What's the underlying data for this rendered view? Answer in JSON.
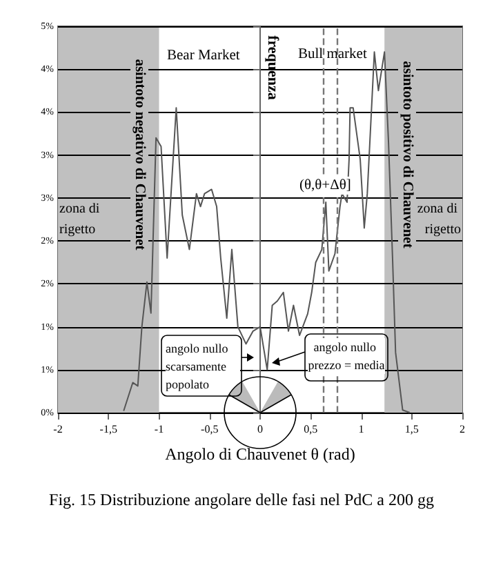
{
  "chart_data": {
    "type": "line",
    "title": "Fig. 15 Distribuzione angolare delle fasi nel PdC a 200 gg",
    "xlabel": "Angolo di Chauvenet θ (rad)",
    "ylabel": "frequenza",
    "annotations": [
      "Bear Market",
      "Bull market",
      "asintoto negativo di Chauvenet",
      "asintoto positivo di Chauvenet",
      "(θ,θ+Δθ]",
      "angolo nullo scarsamente popolato",
      "angolo nullo prezzo = media"
    ],
    "x": [
      -1.35,
      -1.26,
      -1.21,
      -1.17,
      -1.12,
      -1.08,
      -1.03,
      -0.98,
      -0.92,
      -0.83,
      -0.77,
      -0.7,
      -0.63,
      -0.59,
      -0.55,
      -0.48,
      -0.43,
      -0.39,
      -0.33,
      -0.28,
      -0.22,
      -0.14,
      -0.07,
      0,
      0.07,
      0.12,
      0.17,
      0.23,
      0.28,
      0.33,
      0.39,
      0.47,
      0.51,
      0.55,
      0.61,
      0.65,
      0.68,
      0.74,
      0.79,
      0.81,
      0.86,
      0.88,
      0.89,
      0.92,
      0.99,
      1.03,
      1.06,
      1.13,
      1.17,
      1.23,
      1.27,
      1.31,
      1.34,
      1.41,
      1.48
    ],
    "values": [
      0.02,
      0.35,
      0.31,
      1.0,
      1.52,
      1.16,
      3.2,
      3.1,
      1.8,
      3.55,
      2.3,
      1.9,
      2.55,
      2.4,
      2.55,
      2.6,
      2.4,
      1.8,
      1.1,
      1.9,
      1.0,
      0.8,
      0.95,
      1.0,
      0.5,
      1.25,
      1.3,
      1.4,
      0.95,
      1.25,
      0.9,
      1.15,
      1.4,
      1.75,
      1.9,
      2.45,
      1.65,
      1.85,
      2.4,
      2.55,
      2.45,
      2.95,
      3.55,
      3.55,
      2.95,
      2.15,
      2.55,
      4.2,
      3.75,
      4.2,
      3.15,
      1.8,
      0.7,
      0.03,
      0
    ],
    "color": "#555555",
    "marker": "none",
    "line_style": "solid",
    "grid": "y",
    "xlim": [
      -2,
      2
    ],
    "xticks": [
      -2,
      {
        "value": -1.5,
        "label": "-1,5"
      },
      -1,
      {
        "value": -0.5,
        "label": "-0,5"
      },
      0,
      {
        "value": 0.5,
        "label": "0,5"
      },
      1,
      {
        "value": 1.5,
        "label": "1,5"
      },
      2
    ],
    "ylim": [
      0,
      4.5
    ],
    "yticks": [
      {
        "value": 0,
        "label": "0%"
      },
      {
        "value": 0.5,
        "label": "1%"
      },
      {
        "value": 1,
        "label": "1%"
      },
      {
        "value": 1.5,
        "label": "2%"
      },
      {
        "value": 2,
        "label": "2%"
      },
      {
        "value": 2.5,
        "label": "3%"
      },
      {
        "value": 3,
        "label": "3%"
      },
      {
        "value": 3.5,
        "label": "4%"
      },
      {
        "value": 4,
        "label": "4%"
      },
      {
        "value": 4.5,
        "label": "5%"
      }
    ],
    "bands": [
      {
        "axis": "x",
        "from": -2,
        "to": -1,
        "label": "zona di rigetto",
        "color": "#c0c0c0"
      },
      {
        "axis": "x",
        "from": 1.23,
        "to": 2,
        "label": "zona di rigetto",
        "color": "#c0c0c0"
      }
    ],
    "ref_lines": [
      {
        "axis": "x",
        "value": 0.62,
        "color": "#777777",
        "line_style": "dashed"
      },
      {
        "axis": "x",
        "value": 0.76,
        "color": "#777777",
        "line_style": "dashed"
      }
    ]
  }
}
